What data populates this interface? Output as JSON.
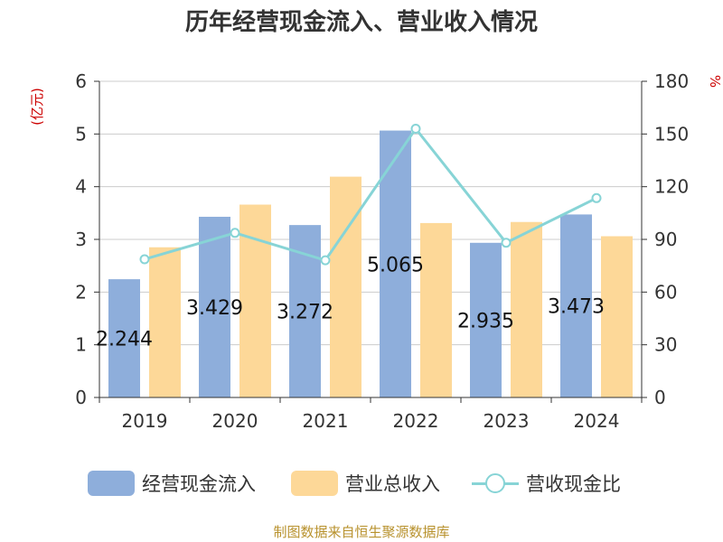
{
  "chart_data": {
    "type": "bar",
    "title": "历年经营现金流入、营业收入情况",
    "categories": [
      "2019",
      "2020",
      "2021",
      "2022",
      "2023",
      "2024"
    ],
    "series": [
      {
        "name": "经营现金流入",
        "type": "bar",
        "axis": "left",
        "color": "#8eaedb",
        "values": [
          2.244,
          3.429,
          3.272,
          5.065,
          2.935,
          3.473
        ],
        "labels": [
          "2.244",
          "3.429",
          "3.272",
          "5.065",
          "2.935",
          "3.473"
        ]
      },
      {
        "name": "营业总收入",
        "type": "bar",
        "axis": "left",
        "color": "#fdd898",
        "values": [
          2.85,
          3.66,
          4.19,
          3.31,
          3.33,
          3.06
        ]
      },
      {
        "name": "营收现金比",
        "type": "line",
        "axis": "right",
        "color": "#87d4d6",
        "values": [
          78.7,
          93.7,
          78.1,
          153.0,
          88.1,
          113.5
        ]
      }
    ],
    "left_axis": {
      "label": "(亿元)",
      "ylim": [
        0,
        6
      ],
      "ticks": [
        "0",
        "1",
        "2",
        "3",
        "4",
        "5",
        "6"
      ]
    },
    "right_axis": {
      "label": "%",
      "ylim": [
        0,
        180
      ],
      "ticks": [
        "0",
        "30",
        "60",
        "90",
        "120",
        "150",
        "180"
      ]
    },
    "grid": true,
    "legend_position": "bottom"
  },
  "source_text": "制图数据来自恒生聚源数据库"
}
